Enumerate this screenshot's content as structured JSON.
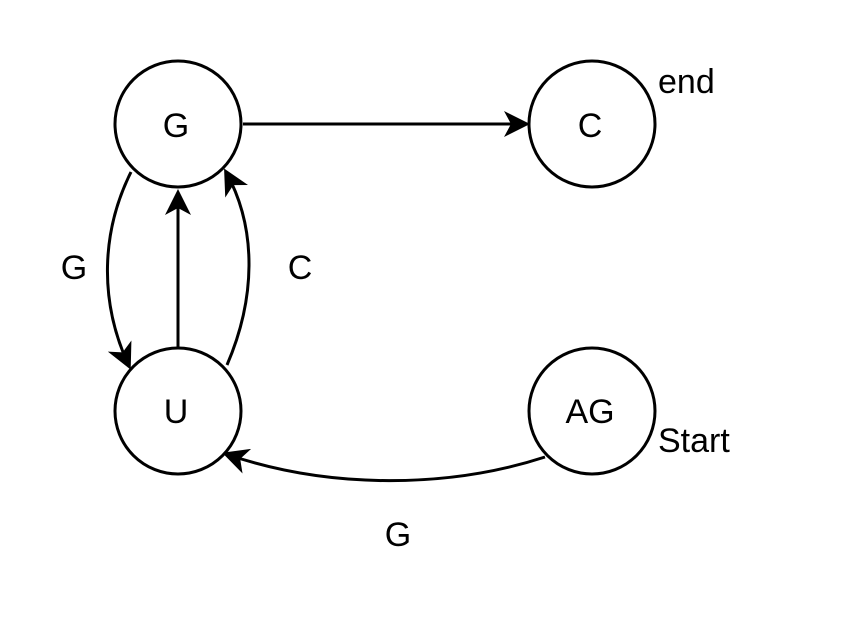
{
  "nodes": {
    "g": "G",
    "c": "C",
    "u": "U",
    "ag": "AG"
  },
  "annotations": {
    "end": "end",
    "start": "Start"
  },
  "edges": [
    {
      "from": "G",
      "to": "C",
      "label": ""
    },
    {
      "from": "G",
      "to": "U",
      "label": "G"
    },
    {
      "from": "U",
      "to": "G",
      "label": ""
    },
    {
      "from": "U",
      "to": "G",
      "label": "C"
    },
    {
      "from": "AG",
      "to": "U",
      "label": "G"
    }
  ],
  "colors": {
    "stroke": "#000000",
    "fill": "#ffffff"
  }
}
